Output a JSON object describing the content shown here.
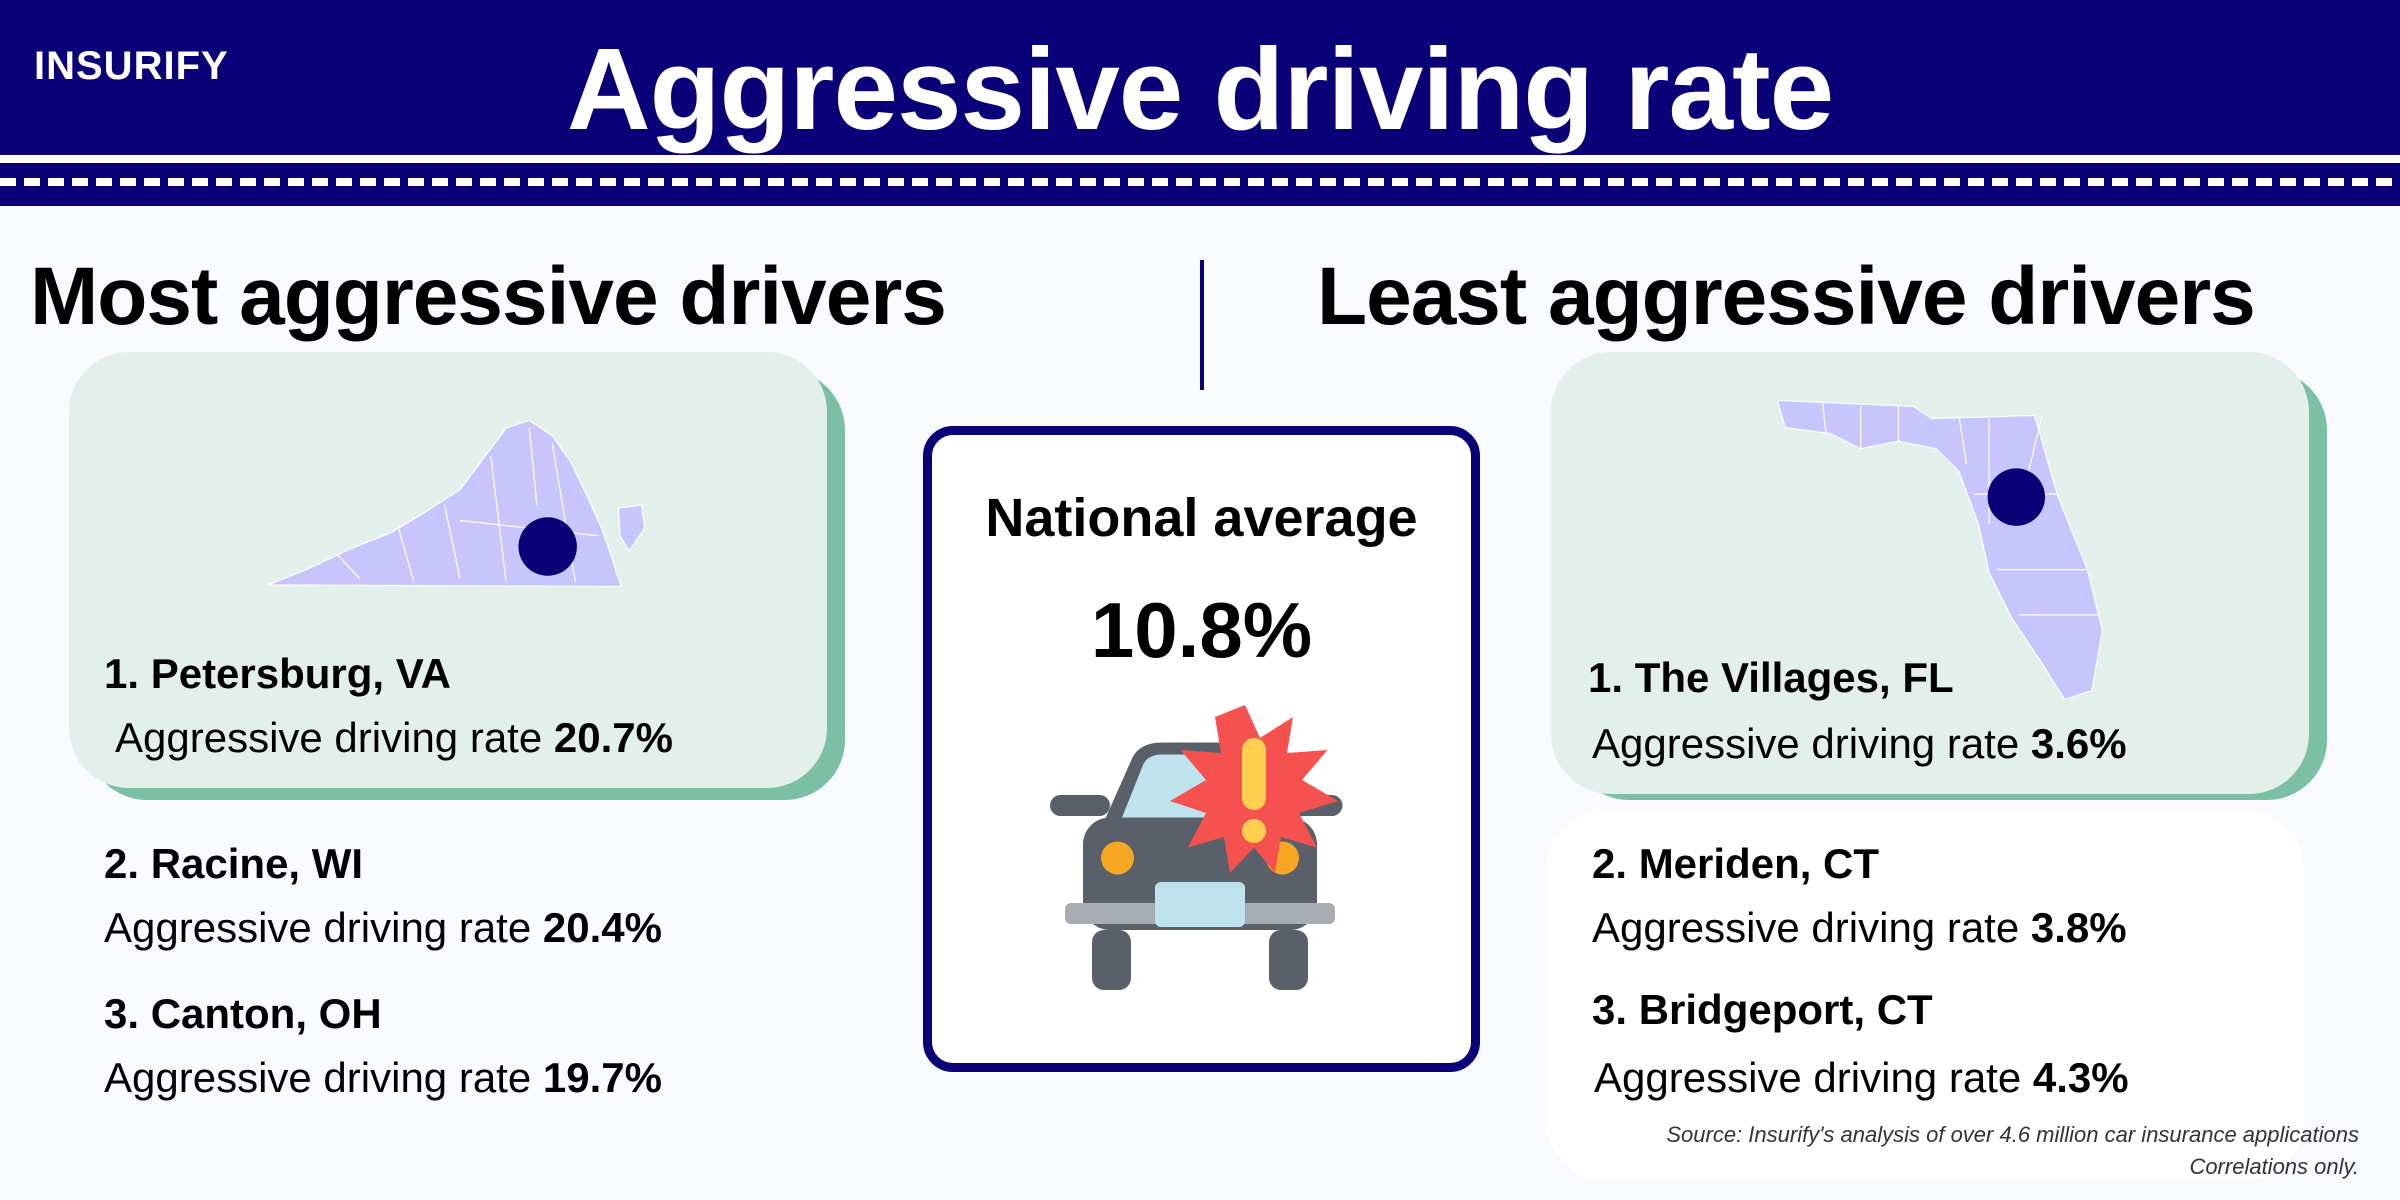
{
  "header": {
    "logo": "INSURIFY",
    "title": "Aggressive driving rate"
  },
  "most": {
    "heading": "Most aggressive drivers",
    "map_state": "Virginia",
    "items": [
      {
        "rank": "1. Petersburg, VA",
        "label": "Aggressive driving rate",
        "value": "20.7%"
      },
      {
        "rank": "2. Racine, WI",
        "label": "Aggressive driving rate",
        "value": "20.4%"
      },
      {
        "rank": "3. Canton, OH",
        "label": "Aggressive driving rate",
        "value": "19.7%"
      }
    ]
  },
  "least": {
    "heading": "Least aggressive drivers",
    "map_state": "Florida",
    "items": [
      {
        "rank": "1. The Villages, FL",
        "label": "Aggressive driving rate",
        "value": "3.6%"
      },
      {
        "rank": "2. Meriden, CT",
        "label": "Aggressive driving rate",
        "value": "3.8%"
      },
      {
        "rank": "3. Bridgeport, CT",
        "label": "Aggressive driving rate",
        "value": "4.3%"
      }
    ]
  },
  "national": {
    "label": "National average",
    "value": "10.8%",
    "icon": "car-crash-warning-icon"
  },
  "source": {
    "line1": "Source: Insurify's analysis of over 4.6 million car insurance applications",
    "line2": "Correlations only."
  },
  "colors": {
    "navy": "#0a0078",
    "card": "#e2efea",
    "card_shadow": "#7bbfa5",
    "map": "#c8c4fc"
  }
}
